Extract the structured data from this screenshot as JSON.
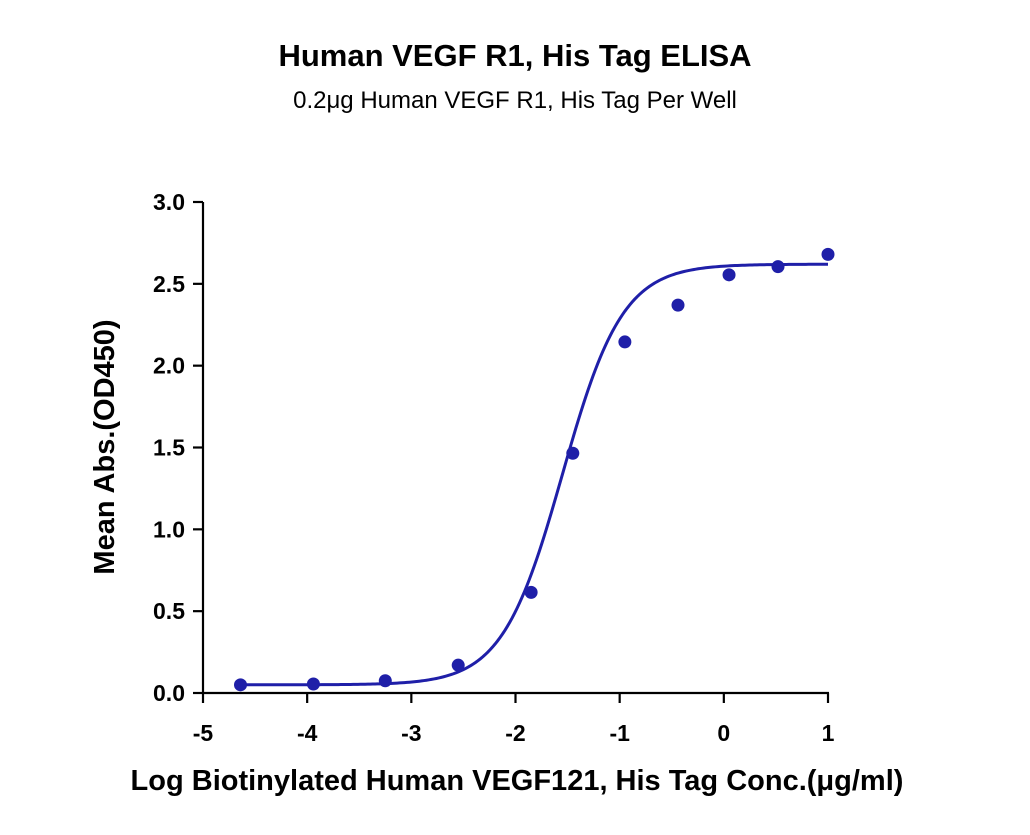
{
  "chart_data": {
    "type": "scatter",
    "title": "Human VEGF R1, His Tag ELISA",
    "subtitle": "0.2μg Human VEGF R1, His Tag Per Well",
    "xlabel": "Log Biotinylated Human VEGF121, His Tag Conc.(μg/ml)",
    "ylabel": "Mean Abs.(OD450)",
    "xlim": [
      -5,
      1
    ],
    "ylim": [
      0,
      3
    ],
    "xticks": [
      "-5",
      "-4",
      "-3",
      "-2",
      "-1",
      "0",
      "1"
    ],
    "yticks": [
      "0.0",
      "0.5",
      "1.0",
      "1.5",
      "2.0",
      "2.5",
      "3.0"
    ],
    "grid": false,
    "legend": "none",
    "color": "#1f1fa8",
    "series": [
      {
        "x": [
          -4.64,
          -3.94,
          -3.25,
          -2.55,
          -1.85,
          -1.45,
          -0.95,
          -0.44,
          0.05,
          0.52,
          1.0
        ],
        "y": [
          0.05,
          0.055,
          0.075,
          0.17,
          0.615,
          1.465,
          2.145,
          2.37,
          2.555,
          2.605,
          2.68
        ]
      }
    ],
    "fit": {
      "type": "sigmoidal",
      "bottom": 0.05,
      "top": 2.62,
      "logEC50": -1.55,
      "hillslope": 1.5
    }
  }
}
